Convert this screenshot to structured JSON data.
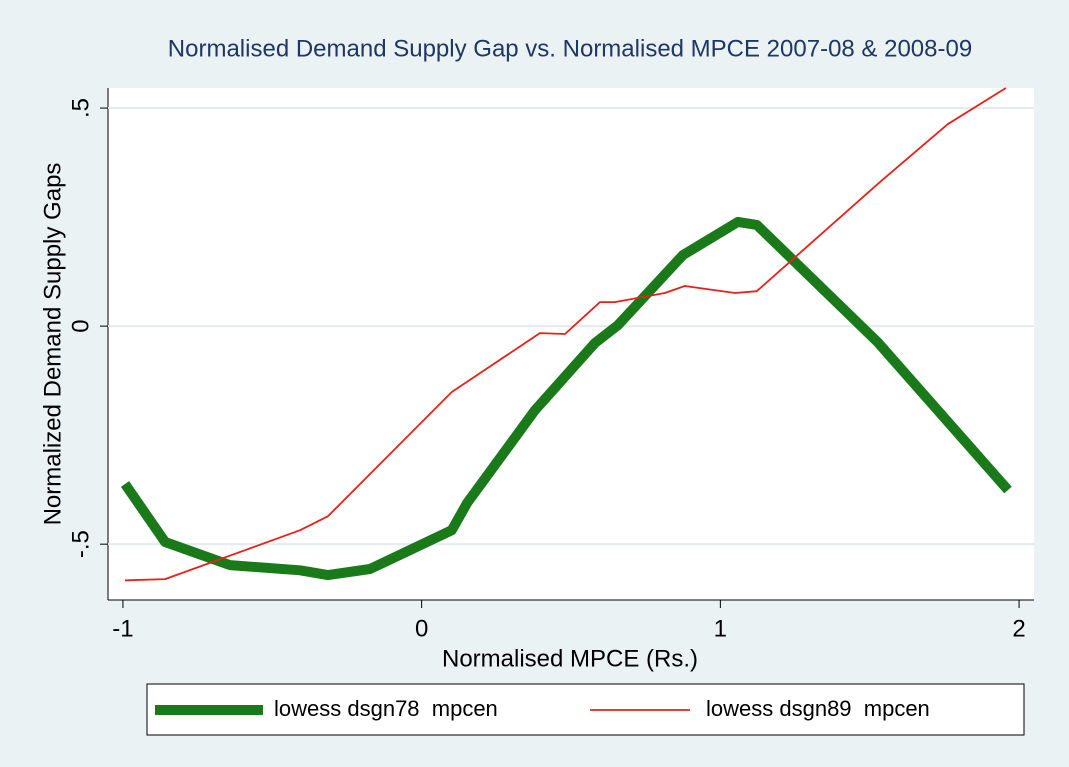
{
  "chart_data": {
    "type": "line",
    "title": "Normalised Demand Supply Gap vs. Normalised MPCE 2007-08 & 2008-09",
    "x_label": "Normalised MPCE (Rs.)",
    "y_label": "Normalized Demand Supply Gaps",
    "xlim": [
      -1.05,
      2.05
    ],
    "xticks": [
      -1,
      0,
      1,
      2
    ],
    "ylim": [
      -0.628,
      0.546
    ],
    "yticks": [
      {
        "value": 0.5,
        "label": ".5"
      },
      0,
      {
        "value": -0.5,
        "label": "-.5"
      }
    ],
    "grid": true,
    "legend": "bottom",
    "series": [
      {
        "name": "lowess dsgn78  mpcen",
        "color": "#1a7a1a",
        "line_width": 10,
        "x": [
          -0.993,
          -0.859,
          -0.642,
          -0.407,
          -0.314,
          -0.173,
          0.101,
          0.152,
          0.379,
          0.58,
          0.657,
          0.875,
          1.059,
          1.122,
          1.527,
          1.963
        ],
        "values": [
          -0.362,
          -0.495,
          -0.548,
          -0.56,
          -0.571,
          -0.557,
          -0.468,
          -0.406,
          -0.193,
          -0.039,
          0.002,
          0.163,
          0.239,
          0.232,
          -0.037,
          -0.376
        ]
      },
      {
        "name": "lowess dsgn89  mpcen",
        "color": "#e8201a",
        "line_width": 1.8,
        "x": [
          -0.993,
          -0.859,
          -0.407,
          -0.314,
          0.101,
          0.396,
          0.48,
          0.597,
          0.647,
          0.814,
          0.881,
          1.049,
          1.122,
          1.527,
          1.761,
          1.956
        ],
        "values": [
          -0.583,
          -0.58,
          -0.468,
          -0.436,
          -0.151,
          -0.016,
          -0.018,
          0.055,
          0.055,
          0.076,
          0.092,
          0.076,
          0.08,
          0.326,
          0.463,
          0.546
        ]
      }
    ]
  }
}
